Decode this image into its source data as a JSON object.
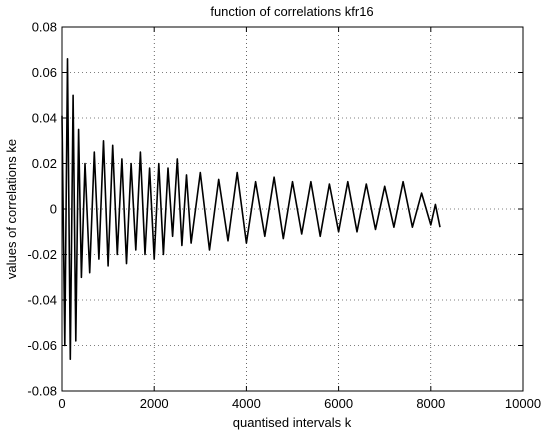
{
  "chart_data": {
    "type": "line",
    "title": "function of correlations kfr16",
    "xlabel": "quantised intervals k",
    "ylabel": "values of correlations ke",
    "xlim": [
      0,
      10000
    ],
    "ylim": [
      -0.08,
      0.08
    ],
    "x_ticks": [
      "0",
      "2000",
      "4000",
      "6000",
      "8000",
      "10000"
    ],
    "x_tick_values": [
      0,
      2000,
      4000,
      6000,
      8000,
      10000
    ],
    "y_ticks": [
      "0.08",
      "0.06",
      "0.04",
      "0.02",
      "0",
      "-0.02",
      "-0.04",
      "-0.06",
      "-0.08"
    ],
    "y_tick_values": [
      0.08,
      0.06,
      0.04,
      0.02,
      0,
      -0.02,
      -0.04,
      -0.06,
      -0.08
    ],
    "grid": true,
    "line_color": "#000000",
    "series": [
      {
        "x": [
          0,
          60,
          120,
          180,
          240,
          300,
          360,
          420,
          500,
          600,
          700,
          800,
          900,
          1000,
          1100,
          1200,
          1300,
          1400,
          1500,
          1600,
          1700,
          1800,
          1900,
          2000,
          2100,
          2200,
          2300,
          2400,
          2500,
          2600,
          2700,
          2800,
          3000,
          3200,
          3400,
          3600,
          3800,
          4000,
          4200,
          4400,
          4600,
          4800,
          5000,
          5200,
          5400,
          5600,
          5800,
          6000,
          6200,
          6400,
          6600,
          6800,
          7000,
          7200,
          7400,
          7600,
          7800,
          8000,
          8100,
          8200
        ],
        "y": [
          0.041,
          -0.06,
          0.066,
          -0.066,
          0.05,
          -0.058,
          0.035,
          -0.03,
          0.02,
          -0.028,
          0.025,
          -0.022,
          0.03,
          -0.025,
          0.028,
          -0.02,
          0.022,
          -0.024,
          0.02,
          -0.018,
          0.025,
          -0.02,
          0.018,
          -0.022,
          0.02,
          -0.02,
          0.018,
          -0.012,
          0.022,
          -0.016,
          0.015,
          -0.015,
          0.016,
          -0.018,
          0.013,
          -0.014,
          0.016,
          -0.015,
          0.012,
          -0.012,
          0.014,
          -0.013,
          0.012,
          -0.011,
          0.012,
          -0.012,
          0.011,
          -0.01,
          0.012,
          -0.01,
          0.011,
          -0.009,
          0.01,
          -0.008,
          0.012,
          -0.008,
          0.007,
          -0.007,
          0.002,
          -0.008
        ]
      }
    ]
  }
}
